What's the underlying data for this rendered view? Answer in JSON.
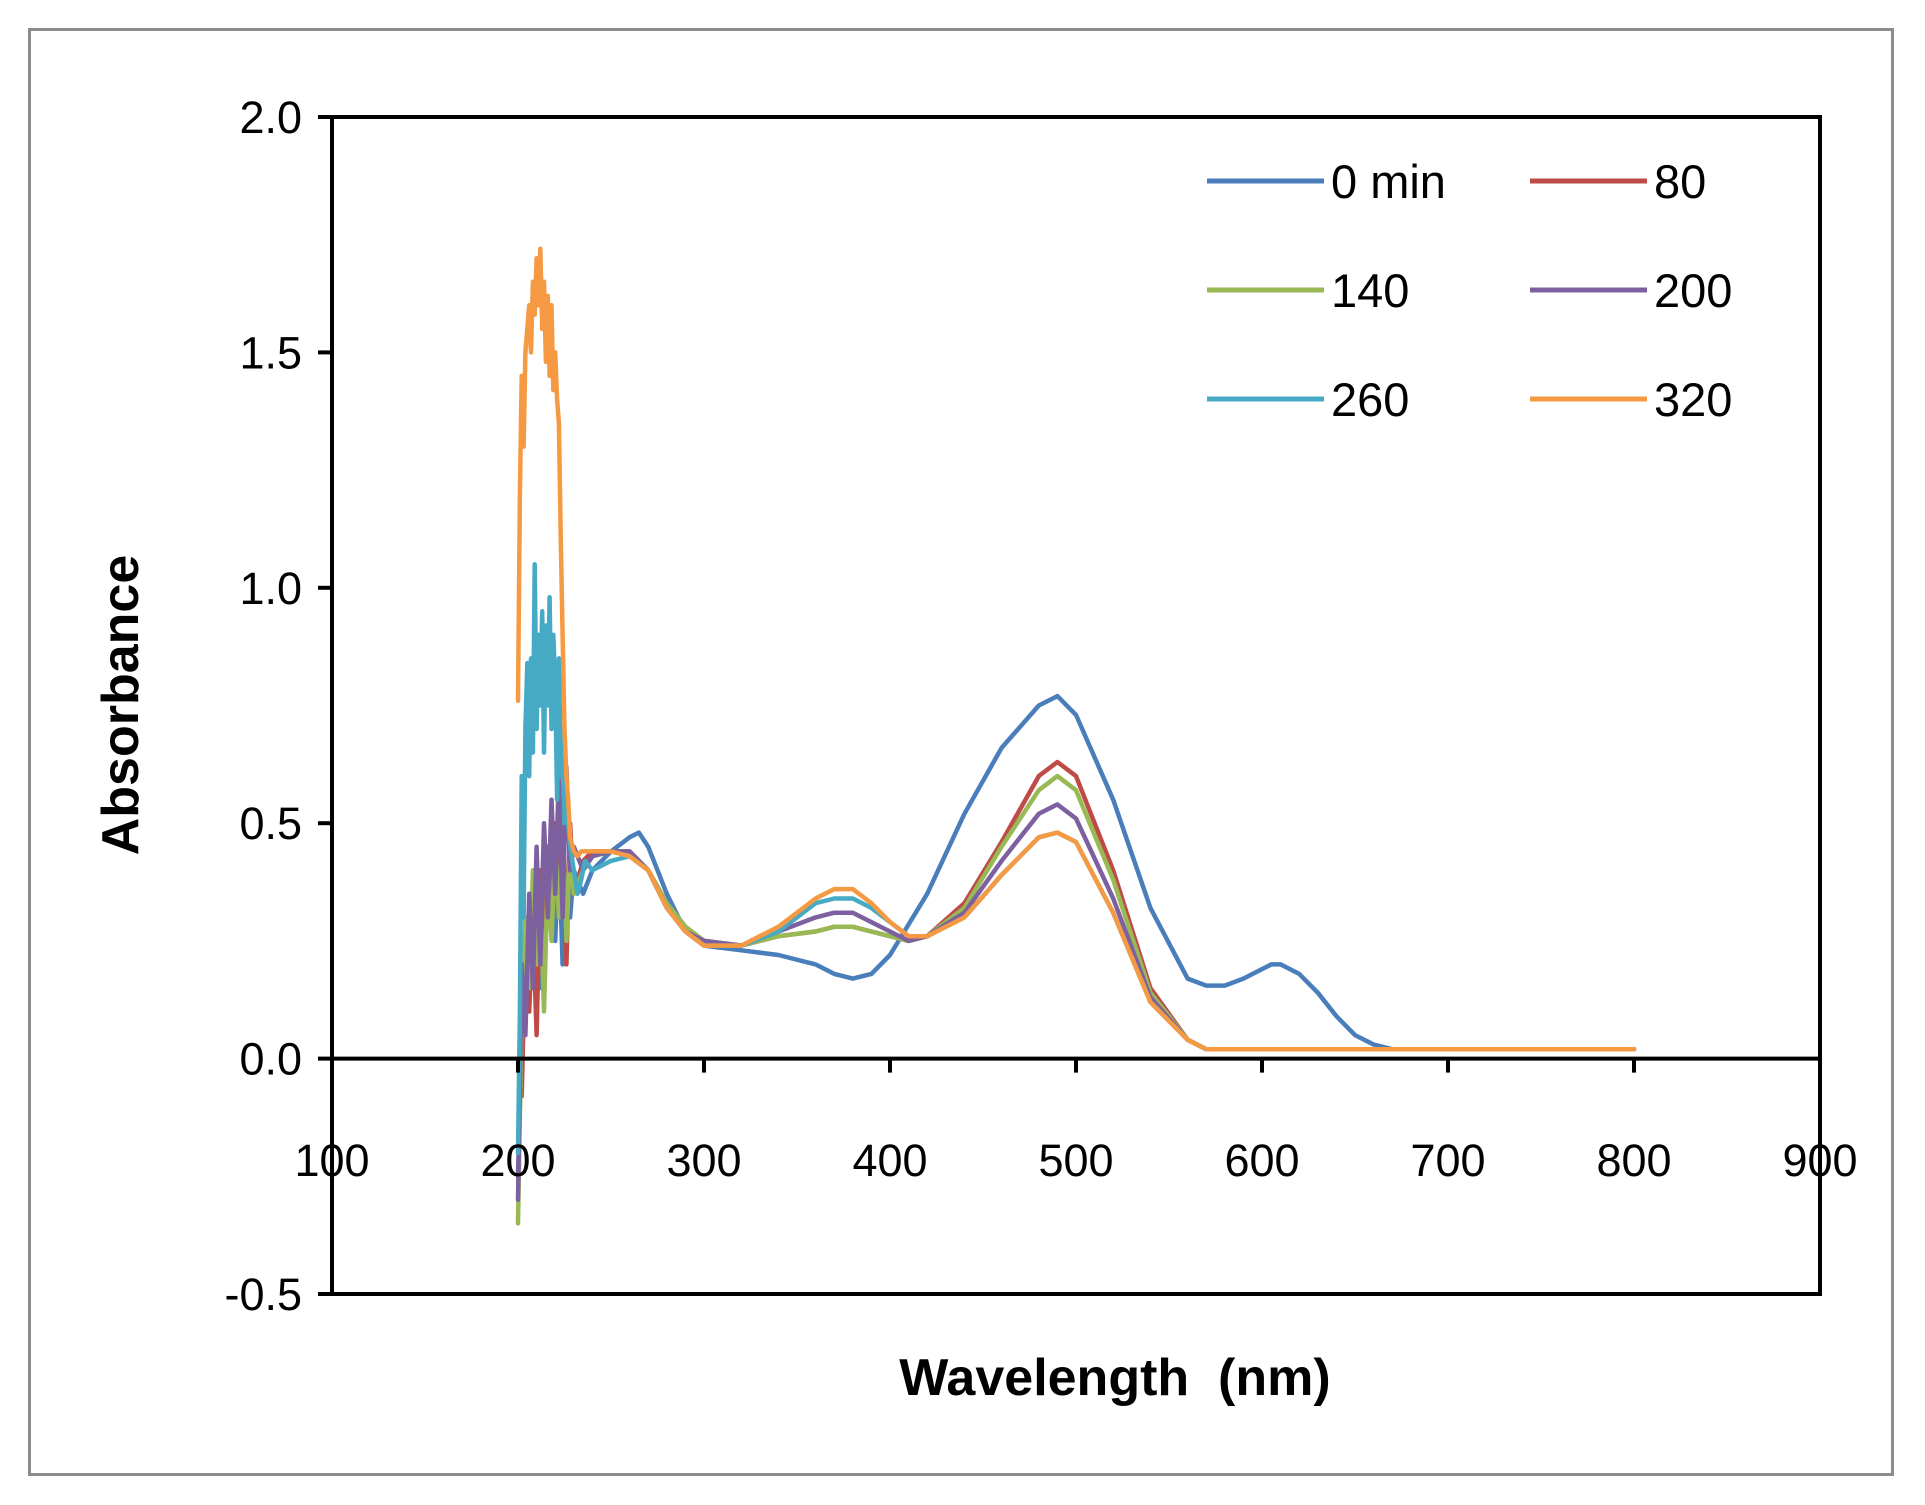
{
  "chart_data": {
    "type": "line",
    "title": "",
    "xlabel": "Wavelength  (nm)",
    "ylabel": "Absorbance",
    "xlim": [
      100,
      900
    ],
    "ylim": [
      -0.5,
      2.0
    ],
    "xticks": [
      100,
      200,
      300,
      400,
      500,
      600,
      700,
      800,
      900
    ],
    "yticks": [
      -0.5,
      0.0,
      0.5,
      1.0,
      1.5,
      2.0
    ],
    "xtick_labels": [
      "100",
      "200",
      "300",
      "400",
      "500",
      "600",
      "700",
      "800",
      "900"
    ],
    "ytick_labels": [
      "-0.5",
      "0.0",
      "0.5",
      "1.0",
      "1.5",
      "2.0"
    ],
    "legend_position": "top-right",
    "grid": false,
    "series": [
      {
        "name": "0 min",
        "color": "#4a7ebb",
        "x": [
          200,
          202,
          204,
          206,
          208,
          210,
          212,
          214,
          216,
          218,
          220,
          222,
          224,
          226,
          228,
          230,
          235,
          240,
          250,
          260,
          265,
          270,
          280,
          290,
          300,
          320,
          340,
          360,
          370,
          380,
          390,
          400,
          420,
          440,
          460,
          480,
          490,
          500,
          520,
          540,
          560,
          570,
          580,
          590,
          600,
          605,
          610,
          620,
          630,
          640,
          650,
          660,
          670,
          700,
          750,
          800
        ],
        "y": [
          -0.25,
          0.05,
          0.1,
          0.3,
          0.2,
          0.25,
          0.15,
          0.35,
          0.3,
          0.4,
          0.25,
          0.45,
          0.2,
          0.4,
          0.3,
          0.4,
          0.35,
          0.4,
          0.44,
          0.47,
          0.48,
          0.45,
          0.35,
          0.27,
          0.24,
          0.23,
          0.22,
          0.2,
          0.18,
          0.17,
          0.18,
          0.22,
          0.35,
          0.52,
          0.66,
          0.75,
          0.77,
          0.73,
          0.55,
          0.32,
          0.17,
          0.155,
          0.155,
          0.17,
          0.19,
          0.2,
          0.2,
          0.18,
          0.14,
          0.09,
          0.05,
          0.03,
          0.02,
          0.02,
          0.02,
          0.02
        ]
      },
      {
        "name": "80",
        "color": "#be4b48",
        "x": [
          200,
          202,
          204,
          206,
          208,
          210,
          212,
          214,
          216,
          218,
          220,
          222,
          224,
          226,
          228,
          230,
          235,
          240,
          250,
          260,
          270,
          280,
          290,
          300,
          320,
          340,
          360,
          370,
          380,
          390,
          400,
          410,
          420,
          440,
          460,
          480,
          490,
          500,
          520,
          540,
          560,
          570,
          580,
          600,
          700,
          800
        ],
        "y": [
          0.0,
          -0.08,
          0.25,
          0.1,
          0.3,
          0.05,
          0.4,
          0.25,
          0.45,
          0.3,
          0.5,
          0.35,
          0.55,
          0.2,
          0.5,
          0.35,
          0.42,
          0.44,
          0.44,
          0.44,
          0.4,
          0.33,
          0.28,
          0.25,
          0.24,
          0.26,
          0.27,
          0.28,
          0.28,
          0.27,
          0.26,
          0.25,
          0.26,
          0.33,
          0.46,
          0.6,
          0.63,
          0.6,
          0.4,
          0.15,
          0.04,
          0.02,
          0.02,
          0.02,
          0.02,
          0.02
        ]
      },
      {
        "name": "140",
        "color": "#98b954",
        "x": [
          200,
          202,
          204,
          206,
          208,
          210,
          212,
          214,
          216,
          218,
          220,
          222,
          224,
          226,
          228,
          230,
          235,
          240,
          250,
          260,
          270,
          280,
          290,
          300,
          320,
          340,
          360,
          370,
          380,
          390,
          400,
          410,
          420,
          440,
          460,
          480,
          490,
          500,
          520,
          540,
          560,
          570,
          580,
          600,
          700,
          800
        ],
        "y": [
          -0.35,
          0.1,
          0.3,
          0.15,
          0.4,
          0.2,
          0.35,
          0.1,
          0.4,
          0.25,
          0.45,
          0.3,
          0.5,
          0.25,
          0.45,
          0.35,
          0.4,
          0.43,
          0.44,
          0.44,
          0.4,
          0.33,
          0.28,
          0.25,
          0.24,
          0.26,
          0.27,
          0.28,
          0.28,
          0.27,
          0.26,
          0.25,
          0.26,
          0.32,
          0.45,
          0.57,
          0.6,
          0.57,
          0.38,
          0.14,
          0.04,
          0.02,
          0.02,
          0.02,
          0.02,
          0.02
        ]
      },
      {
        "name": "200",
        "color": "#7d60a0",
        "x": [
          200,
          202,
          204,
          206,
          208,
          210,
          212,
          214,
          216,
          218,
          220,
          222,
          224,
          226,
          228,
          230,
          235,
          240,
          250,
          260,
          270,
          280,
          290,
          300,
          320,
          340,
          360,
          370,
          380,
          390,
          400,
          410,
          420,
          440,
          460,
          480,
          490,
          500,
          520,
          540,
          560,
          570,
          580,
          600,
          700,
          800
        ],
        "y": [
          -0.3,
          0.2,
          0.05,
          0.35,
          0.15,
          0.45,
          0.2,
          0.5,
          0.3,
          0.55,
          0.35,
          0.6,
          0.3,
          0.62,
          0.4,
          0.45,
          0.4,
          0.43,
          0.44,
          0.44,
          0.4,
          0.32,
          0.27,
          0.25,
          0.24,
          0.27,
          0.3,
          0.31,
          0.31,
          0.29,
          0.27,
          0.25,
          0.26,
          0.31,
          0.42,
          0.52,
          0.54,
          0.51,
          0.34,
          0.13,
          0.04,
          0.02,
          0.02,
          0.02,
          0.02,
          0.02
        ]
      },
      {
        "name": "260",
        "color": "#46aac5",
        "x": [
          200,
          201,
          202,
          203,
          204,
          205,
          206,
          207,
          208,
          209,
          210,
          211,
          212,
          213,
          214,
          215,
          216,
          217,
          218,
          219,
          220,
          221,
          222,
          223,
          224,
          225,
          226,
          228,
          230,
          232,
          234,
          236,
          240,
          250,
          260,
          270,
          280,
          290,
          300,
          320,
          340,
          360,
          370,
          380,
          390,
          400,
          410,
          420,
          440,
          460,
          480,
          490,
          500,
          520,
          540,
          560,
          570,
          580,
          600,
          700,
          800
        ],
        "y": [
          -0.2,
          0.1,
          0.6,
          0.3,
          0.7,
          0.84,
          0.6,
          0.85,
          0.65,
          1.05,
          0.7,
          0.9,
          0.75,
          0.95,
          0.65,
          0.92,
          0.75,
          0.98,
          0.7,
          0.9,
          0.8,
          0.55,
          0.85,
          0.6,
          0.7,
          0.5,
          0.55,
          0.45,
          0.4,
          0.35,
          0.38,
          0.42,
          0.4,
          0.42,
          0.43,
          0.4,
          0.32,
          0.27,
          0.24,
          0.24,
          0.27,
          0.33,
          0.34,
          0.34,
          0.32,
          0.29,
          0.26,
          0.26,
          0.3,
          0.39,
          0.47,
          0.48,
          0.46,
          0.31,
          0.12,
          0.04,
          0.02,
          0.02,
          0.02,
          0.02,
          0.02
        ]
      },
      {
        "name": "320",
        "color": "#f59a43",
        "x": [
          200,
          201,
          202,
          203,
          204,
          205,
          206,
          207,
          208,
          209,
          210,
          211,
          212,
          213,
          214,
          215,
          216,
          217,
          218,
          219,
          220,
          221,
          222,
          223,
          224,
          225,
          226,
          227,
          228,
          230,
          232,
          234,
          236,
          240,
          250,
          260,
          270,
          280,
          290,
          300,
          320,
          340,
          360,
          370,
          380,
          390,
          400,
          410,
          420,
          440,
          460,
          480,
          490,
          500,
          520,
          540,
          560,
          570,
          580,
          600,
          700,
          800
        ],
        "y": [
          0.76,
          1.2,
          1.45,
          1.3,
          1.5,
          1.55,
          1.6,
          1.5,
          1.65,
          1.58,
          1.7,
          1.6,
          1.72,
          1.55,
          1.65,
          1.48,
          1.62,
          1.45,
          1.6,
          1.42,
          1.5,
          1.4,
          1.35,
          1.1,
          0.9,
          0.7,
          0.6,
          0.55,
          0.47,
          0.44,
          0.43,
          0.44,
          0.44,
          0.44,
          0.44,
          0.43,
          0.4,
          0.32,
          0.27,
          0.24,
          0.24,
          0.28,
          0.34,
          0.36,
          0.36,
          0.33,
          0.29,
          0.26,
          0.26,
          0.3,
          0.39,
          0.47,
          0.48,
          0.46,
          0.31,
          0.12,
          0.04,
          0.02,
          0.02,
          0.02,
          0.02,
          0.02
        ]
      }
    ]
  }
}
